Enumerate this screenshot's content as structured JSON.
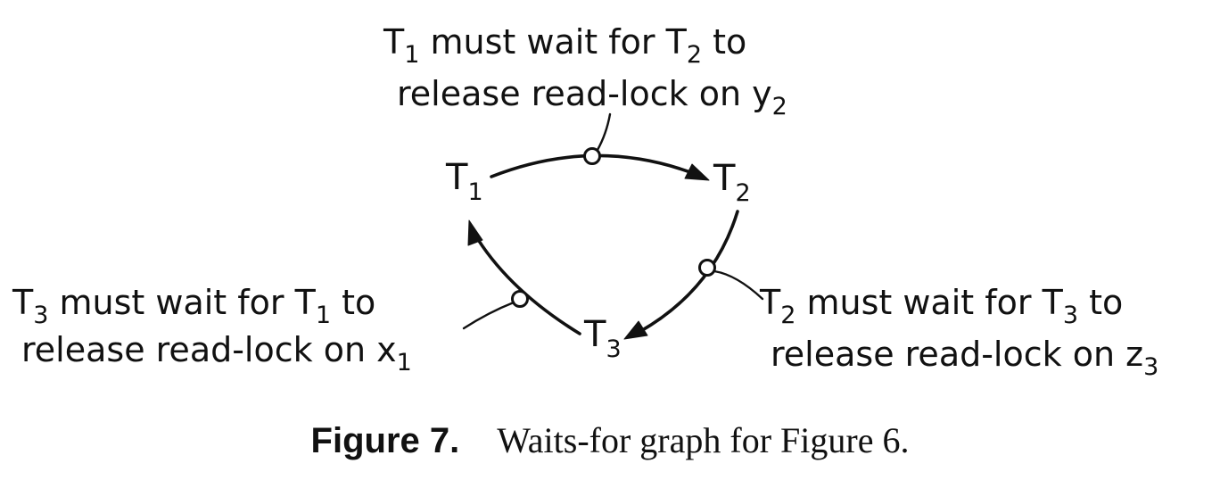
{
  "nodes": {
    "t1": {
      "letter": "T",
      "sub": "1"
    },
    "t2": {
      "letter": "T",
      "sub": "2"
    },
    "t3": {
      "letter": "T",
      "sub": "3"
    }
  },
  "annotations": {
    "top": {
      "line1": {
        "a": "T",
        "a_sub": "1",
        "b": " must wait for T",
        "b_sub": "2",
        "c": " to"
      },
      "line2": {
        "a": "release read-lock on y",
        "a_sub": "2"
      }
    },
    "left": {
      "line1": {
        "a": "T",
        "a_sub": "3",
        "b": " must wait for T",
        "b_sub": "1",
        "c": " to"
      },
      "line2": {
        "a": "release read-lock on x",
        "a_sub": "1"
      }
    },
    "right": {
      "line1": {
        "a": "T",
        "a_sub": "2",
        "b": " must wait for T",
        "b_sub": "3",
        "c": " to"
      },
      "line2": {
        "a": "release read-lock on z",
        "a_sub": "3"
      }
    }
  },
  "caption": {
    "label": "Figure 7.",
    "text": "Waits-for graph for Figure 6."
  }
}
